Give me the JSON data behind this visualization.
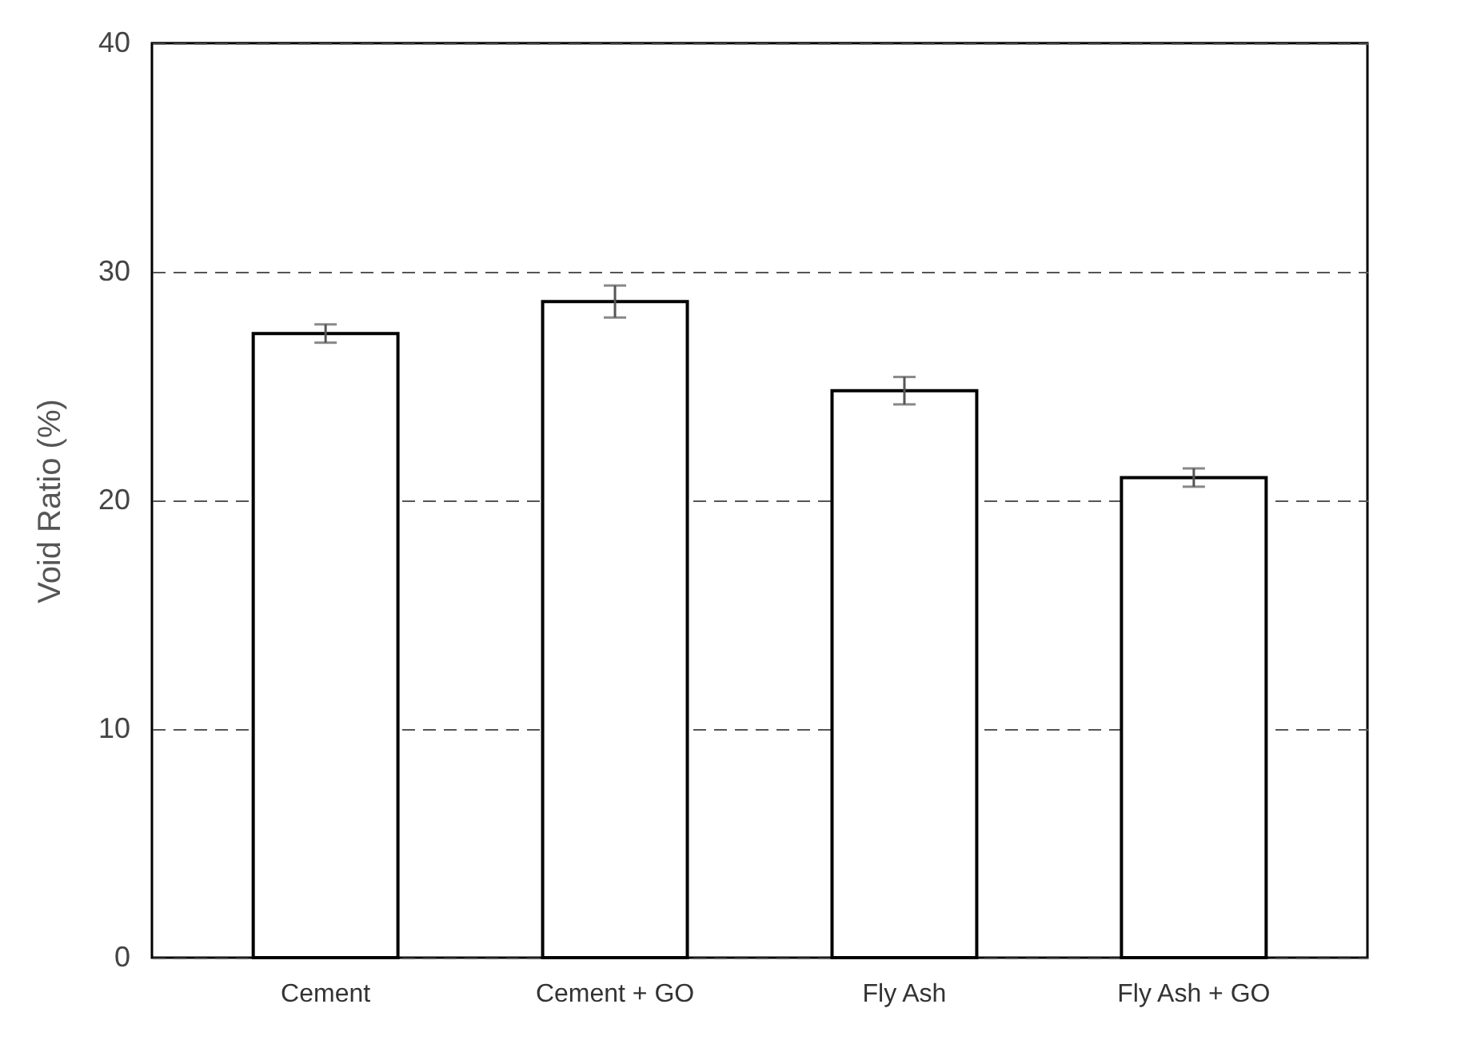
{
  "chart_data": {
    "type": "bar",
    "ylabel": "Void Ratio (%)",
    "categories": [
      "Cement",
      "Cement + GO",
      "Fly Ash",
      "Fly Ash + GO"
    ],
    "values": [
      27.3,
      28.7,
      24.8,
      21.0
    ],
    "errors": [
      0.4,
      0.7,
      0.6,
      0.4
    ],
    "colors": [
      "#ffffff",
      "#ffffff",
      "#ffffff",
      "#ffffff"
    ],
    "ylim": [
      0,
      40
    ],
    "yticks": [
      0,
      10,
      20,
      30,
      40
    ],
    "grid": "y"
  }
}
